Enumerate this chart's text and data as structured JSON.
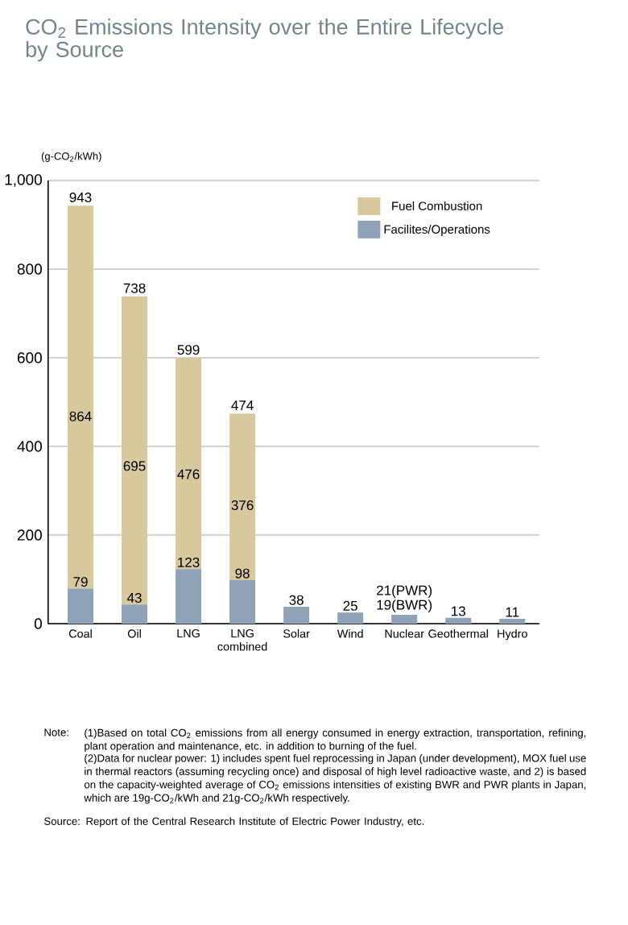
{
  "chart_data": {
    "type": "bar",
    "stacked": true,
    "title": "CO$_{2}$ Emissions Intensity over the Entire Lifecycle by Source",
    "ylabel": "(g-CO$_{2}$/kWh)",
    "categories": [
      "Coal",
      "Oil",
      "LNG",
      "LNG combined",
      "Solar",
      "Wind",
      "Nuclear",
      "Geothermal",
      "Hydro"
    ],
    "series": [
      {
        "name": "Facilites/Operations",
        "color": "#8fa3b8",
        "values": [
          79,
          43,
          123,
          98,
          38,
          25,
          20,
          13,
          11
        ],
        "value_labels": [
          "79",
          "43",
          "123",
          "98",
          "38",
          "25",
          null,
          "13",
          "11"
        ]
      },
      {
        "name": "Fuel Combustion",
        "color": "#d8c89e",
        "values": [
          864,
          695,
          476,
          376,
          null,
          null,
          null,
          null,
          null
        ],
        "value_labels": [
          "864",
          "695",
          "476",
          "376",
          null,
          null,
          null,
          null,
          null
        ]
      }
    ],
    "totals": [
      "943",
      "738",
      "599",
      "474",
      null,
      null,
      null,
      null,
      null
    ],
    "ylim": [
      0,
      1000
    ],
    "yticks": [
      0,
      200,
      400,
      600,
      800,
      {
        "value": 1000,
        "label": "1,000"
      }
    ],
    "grid": "y",
    "legend": "top right",
    "annotations": [
      {
        "text": "21(PWR)",
        "x": "Nuclear",
        "y": 21
      },
      {
        "text": "19(BWR)",
        "x": "Nuclear",
        "y": 19
      },
      "Note:",
      "(1)Based on total CO$_{2}$ emissions from all energy consumed in energy extraction, transportation, refining, plant operation and maintenance, etc. in addition to burning of the fuel.",
      "(2)Data for nuclear power: 1) includes spent fuel reprocessing in Japan (under development), MOX fuel use in thermal reactors (assuming recycling once) and disposal of high level radioactive waste, and 2) is based on the capacity-weighted average of CO$_{2}$ emissions intensities of existing BWR and PWR plants in Japan, which are 19g-CO$_{2}$/kWh and 21g-CO$_{2}$/kWh respectively.",
      "Source: Report of the Central Research Institute of Electric Power Industry, etc."
    ]
  }
}
